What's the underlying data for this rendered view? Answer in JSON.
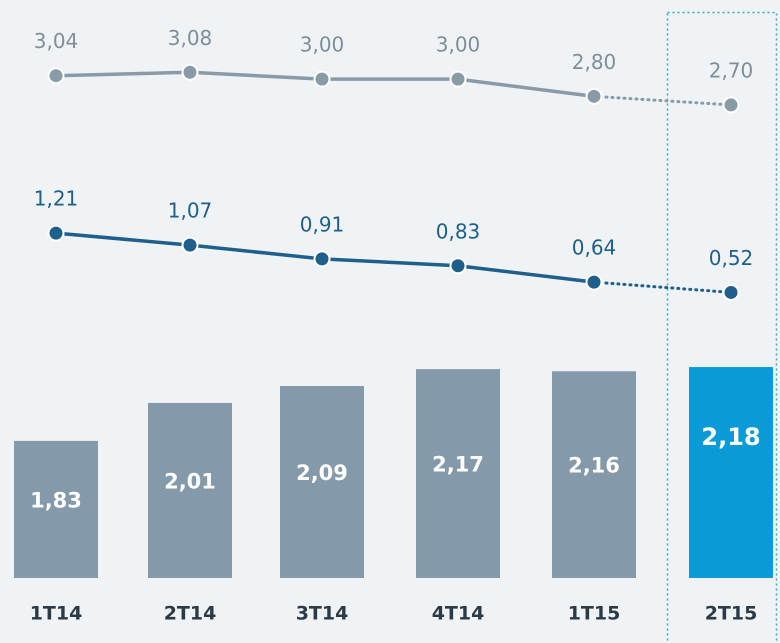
{
  "chart_data": {
    "type": "combo",
    "categories": [
      "1T14",
      "2T14",
      "3T14",
      "4T14",
      "1T15",
      "2T15"
    ],
    "estimate": [
      false,
      false,
      false,
      false,
      false,
      true
    ],
    "ylim": [
      1.18,
      3.92
    ],
    "y2lim": [
      -2.8,
      3.92
    ],
    "series": [
      {
        "kind": "bar",
        "color": "#8499aa",
        "highlight_color": "#0a9ad6",
        "values": [
          1.83,
          2.01,
          2.09,
          2.17,
          2.16,
          2.18
        ],
        "value_labels": [
          "1,83",
          "2,01",
          "2,09",
          "2,17",
          "2,16",
          "2,18"
        ]
      },
      {
        "kind": "line",
        "axis": "y2",
        "color": "#8a9ba8",
        "label_color": "#7f8f99",
        "values": [
          3.04,
          3.08,
          3.0,
          3.0,
          2.8,
          2.7
        ],
        "value_labels": [
          "3,04",
          "3,08",
          "3,00",
          "3,00",
          "2,80",
          "2,70"
        ]
      },
      {
        "kind": "line",
        "axis": "y2",
        "color": "#1f5f8b",
        "label_color": "#1f5f8b",
        "values": [
          1.21,
          1.07,
          0.91,
          0.83,
          0.64,
          0.52
        ],
        "value_labels": [
          "1,21",
          "1,07",
          "0,91",
          "0,83",
          "0,64",
          "0,52"
        ]
      }
    ]
  }
}
